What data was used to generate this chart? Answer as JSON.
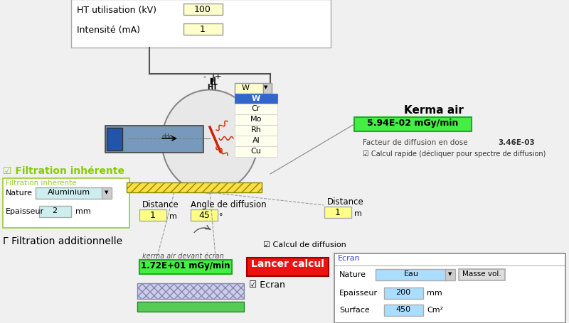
{
  "bg_color": "#f0f0f0",
  "title_top_left": "HT utilisation (kV)",
  "title_intensite": "Intensité (mA)",
  "val_ht": "100",
  "val_intensite": "1",
  "kerma_air_title": "Kerma air",
  "kerma_air_value": "5.94E-02 mGy/min",
  "facteur_label": "Facteur de diffusion en dose",
  "facteur_value": "3.46E-03",
  "calcul_rapide": "Calcul rapide (décliquer pour spectre de diffusion)",
  "filtration_inherente_title": "☑ Filtration inhérente",
  "filtration_inherente_box": "Filtration inhérente",
  "nature_label": "Nature",
  "aluminium_val": "Aluminium",
  "epaisseur_label": "Epaisseur",
  "epaisseur_val": "2",
  "epaisseur_unit": "mm",
  "filtration_add_title": "Γ Filtration additionnelle",
  "distance_label1": "Distance",
  "distance_val1": "1",
  "distance_unit1": "m",
  "angle_label": "Angle de diffusion",
  "angle_val": "45",
  "angle_unit": "°",
  "calcul_diffusion_check": "☑ Calcul de diffusion",
  "distance_label2": "Distance",
  "distance_val2": "1",
  "distance_unit2": "m",
  "kerma_devant_label": "kerma air devant écran",
  "kerma_devant_val": "1.72E+01 mGy/min",
  "lancer_calcul": "Lancer calcul",
  "ecran_check": "☑ Ecran",
  "ecran_box_title": "Ecran",
  "nature_ecran_label": "Nature",
  "eau_val": "Eau",
  "masse_vol_btn": "Masse vol.",
  "epaisseur_ecran_label": "Epaisseur",
  "epaisseur_ecran_val": "200",
  "epaisseur_ecran_unit": "mm",
  "surface_label": "Surface",
  "surface_val": "450",
  "surface_unit": "Cm²",
  "dropdown_items": [
    "W",
    "Cr",
    "Mo",
    "Rh",
    "Al",
    "Cu"
  ],
  "dropdown_selected": "W"
}
